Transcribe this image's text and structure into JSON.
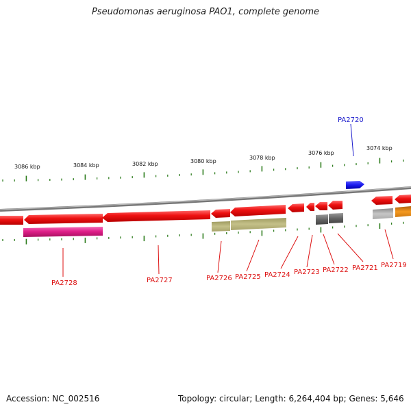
{
  "title": "Pseudomonas aeruginosa PAO1, complete genome",
  "footer": {
    "accession": "Accession: NC_002516",
    "summary": "Topology: circular; Length: 6,264,404 bp; Genes: 5,646"
  },
  "scale_labels": [
    "3086 kbp",
    "3084 kbp",
    "3082 kbp",
    "3080 kbp",
    "3078 kbp",
    "3076 kbp",
    "3074 kbp"
  ],
  "gene_labels": [
    "PA2720",
    "PA2728",
    "PA2727",
    "PA2726",
    "PA2725",
    "PA2724",
    "PA2723",
    "PA2722",
    "PA2721",
    "PA2719"
  ],
  "colors": {
    "backbone": "#888888",
    "tick": "#2e7d1e",
    "cds_red": "#ee1111",
    "pink": "#e0208a",
    "olive": "#b8b47a",
    "dark_gray": "#666666",
    "light_gray": "#bbbbbb",
    "orange": "#f08a10",
    "blue": "#1a1aee",
    "label_red": "#dd1111",
    "label_blue": "#1a1acc"
  }
}
